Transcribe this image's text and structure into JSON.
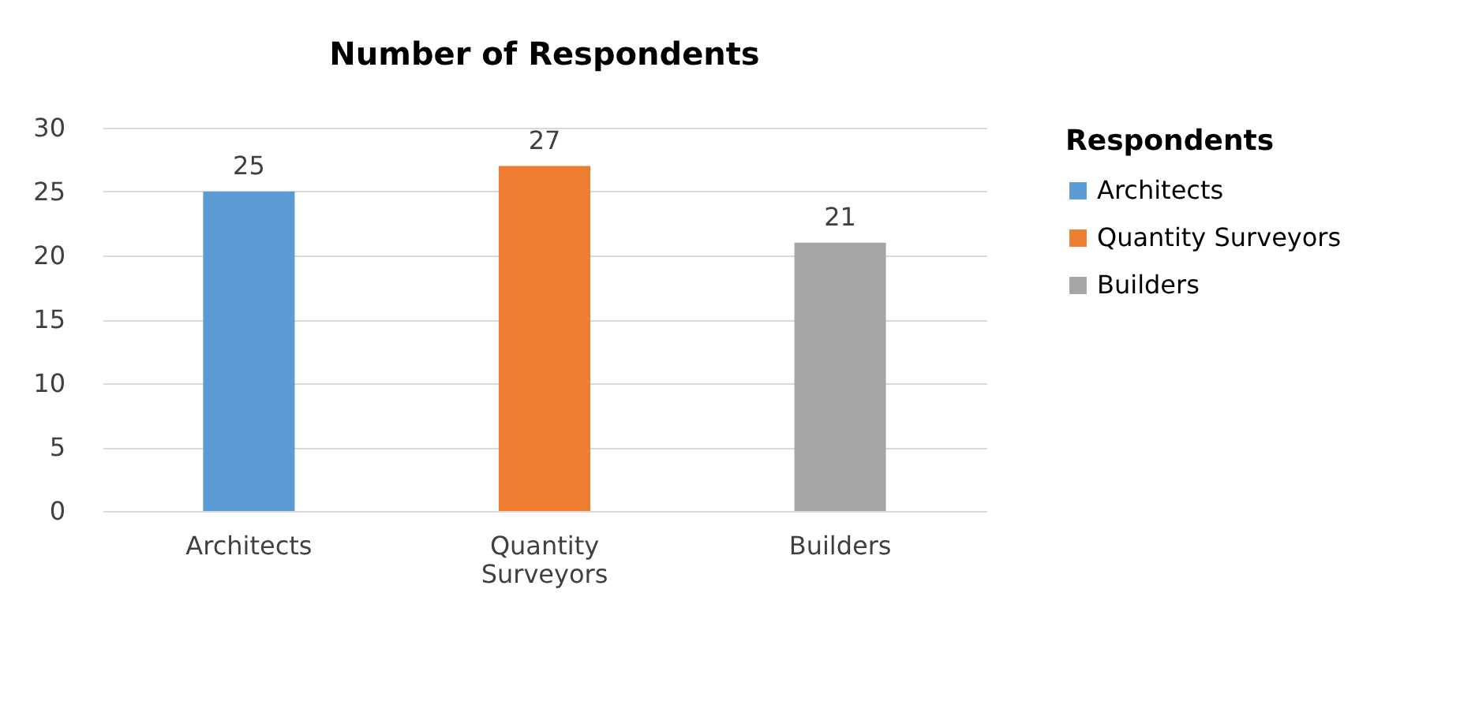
{
  "chart_data": {
    "type": "bar",
    "title": "Number of Respondents",
    "legend_title": "Respondents",
    "categories": [
      "Architects",
      "Quantity Surveyors",
      "Builders"
    ],
    "series": [
      {
        "name": "Architects",
        "color": "#5b9bd5",
        "values": [
          25,
          null,
          null
        ]
      },
      {
        "name": "Quantity Surveyors",
        "color": "#ed7d31",
        "values": [
          null,
          27,
          null
        ]
      },
      {
        "name": "Builders",
        "color": "#a5a5a5",
        "values": [
          null,
          null,
          21
        ]
      }
    ],
    "ylim": [
      0,
      30
    ],
    "yticks": [
      0,
      5,
      10,
      15,
      20,
      25,
      30
    ],
    "grid": "y",
    "legend": "right",
    "data_labels": true
  }
}
